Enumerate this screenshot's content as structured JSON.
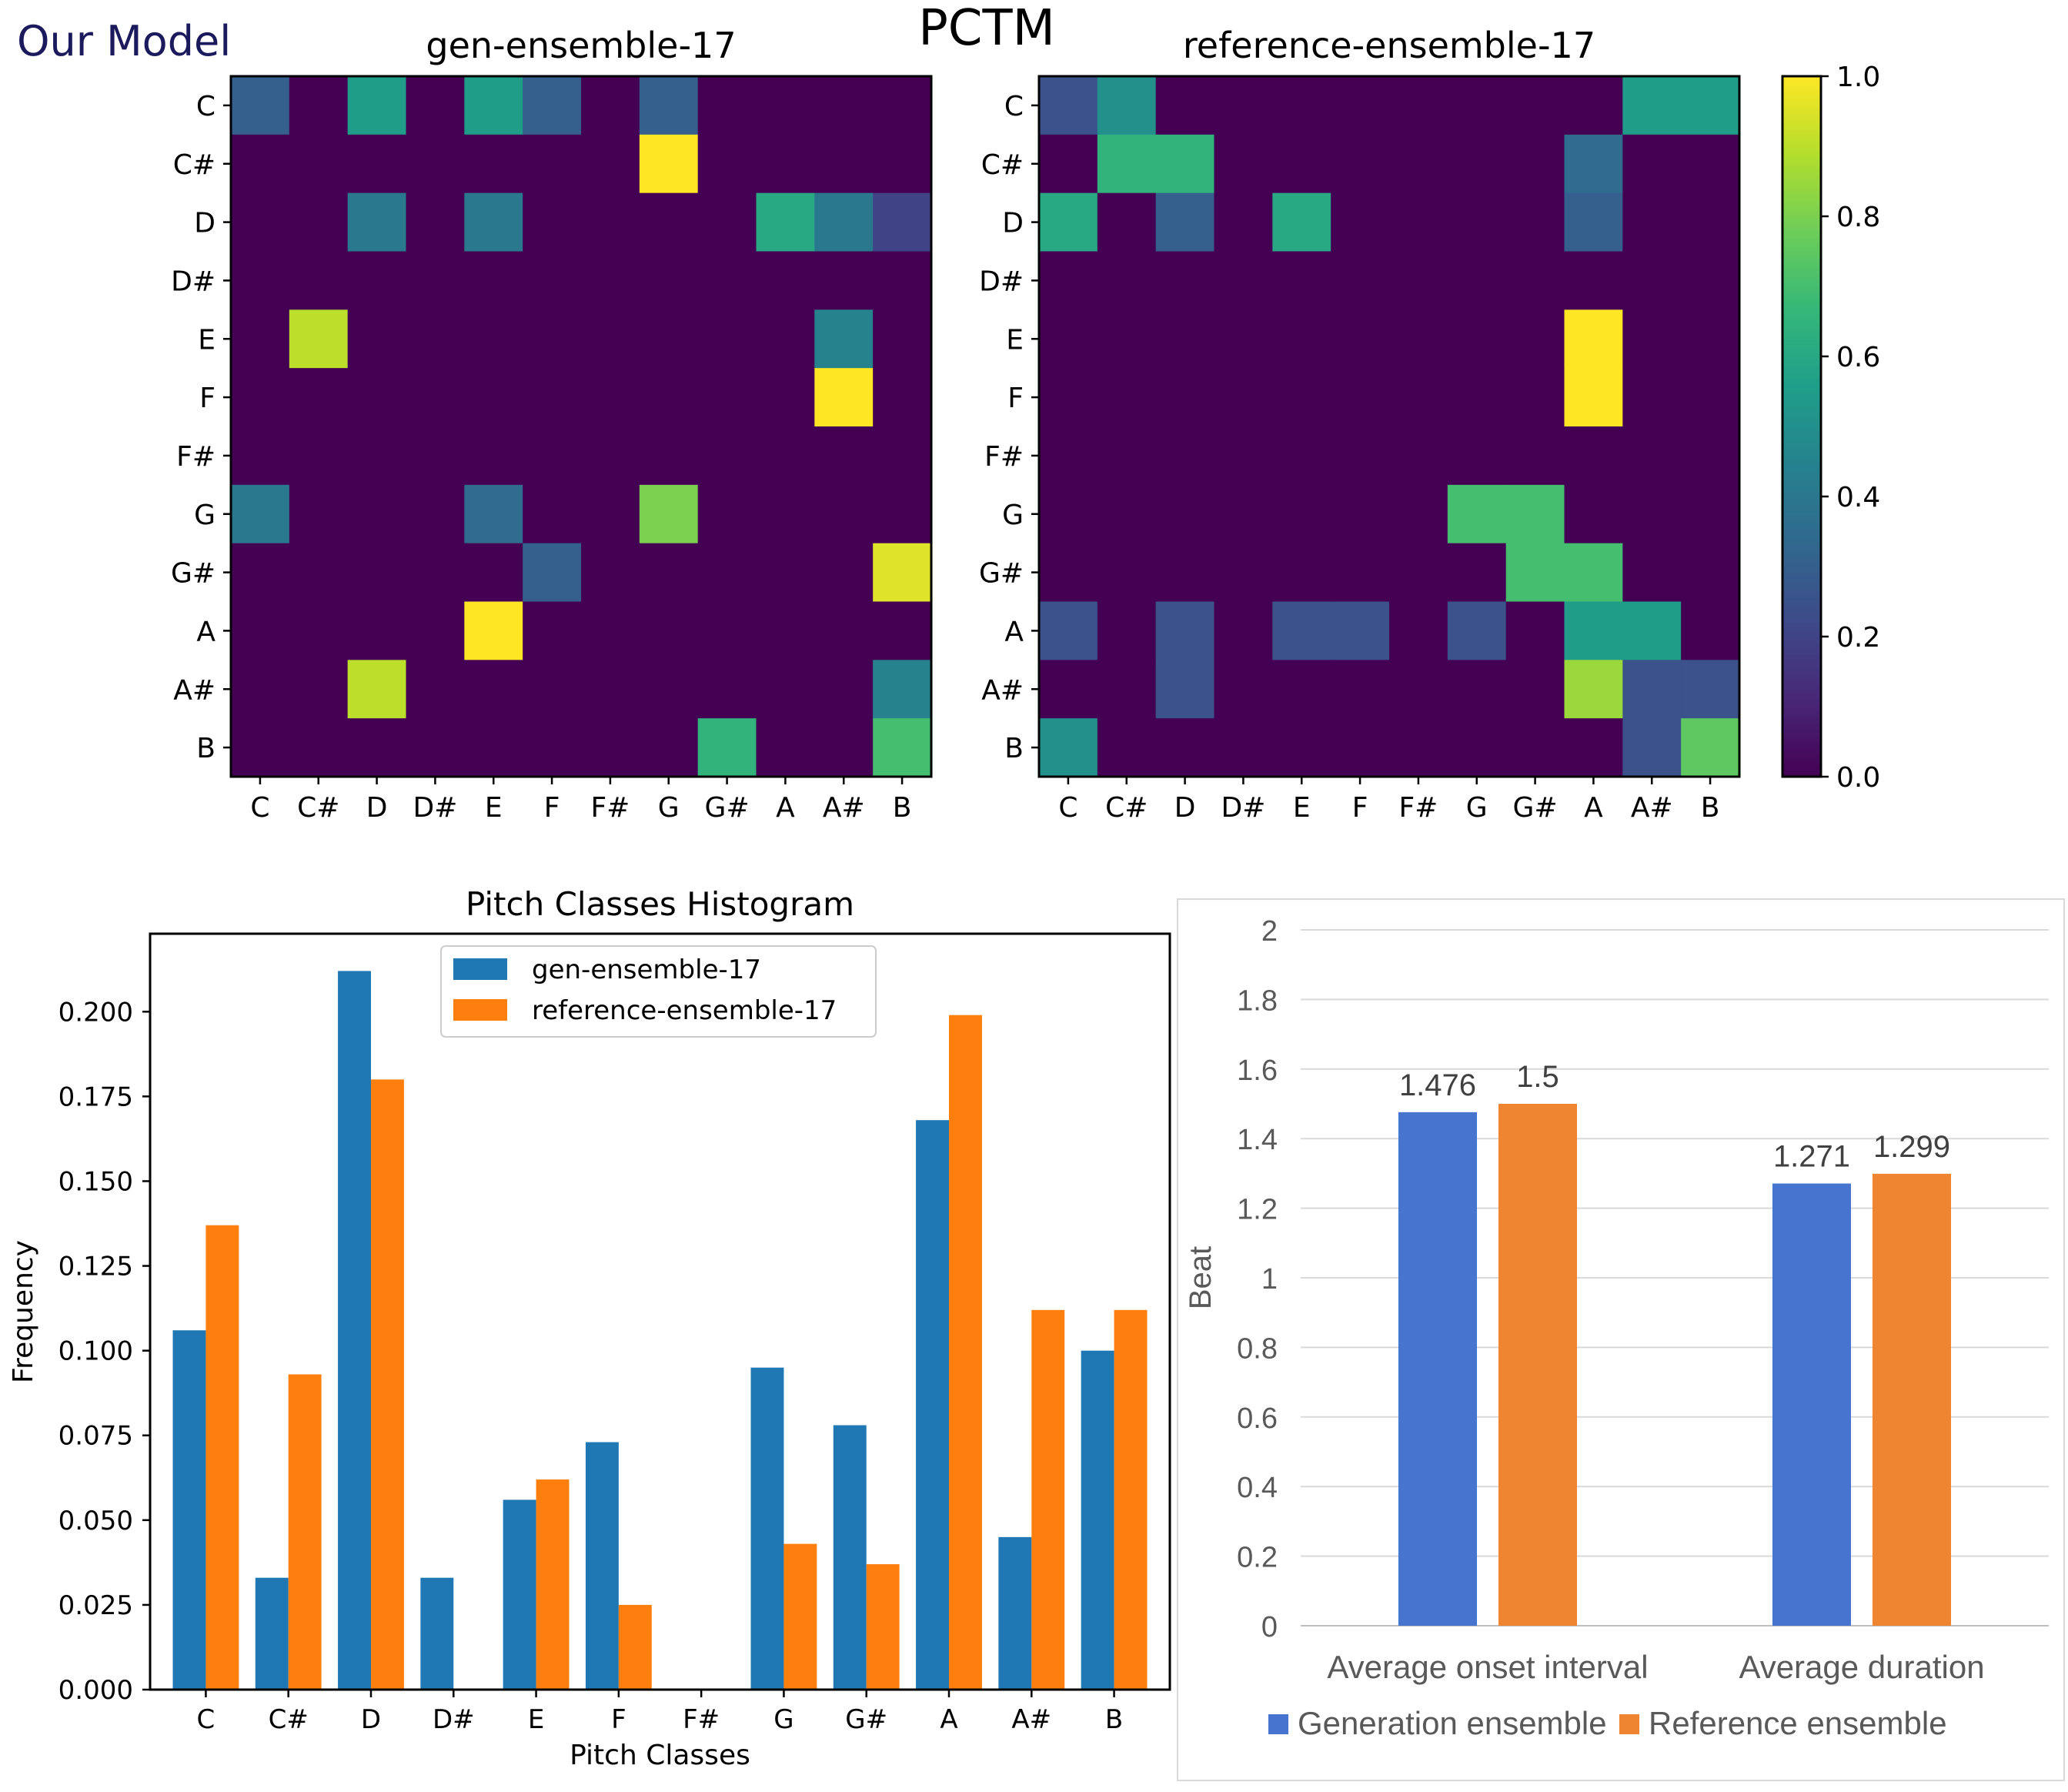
{
  "header": {
    "model_label": "Our Model",
    "figure_title": "PCTM"
  },
  "chart_data": [
    {
      "id": "heatmap-gen",
      "type": "heatmap",
      "title": "gen-ensemble-17",
      "row_labels": [
        "C",
        "C#",
        "D",
        "D#",
        "E",
        "F",
        "F#",
        "G",
        "G#",
        "A",
        "A#",
        "B"
      ],
      "col_labels": [
        "C",
        "C#",
        "D",
        "D#",
        "E",
        "F",
        "F#",
        "G",
        "G#",
        "A",
        "A#",
        "B"
      ],
      "vmin": 0,
      "vmax": 1,
      "values": [
        [
          0.3,
          0,
          0.55,
          0,
          0.55,
          0.3,
          0,
          0.3,
          0,
          0,
          0,
          0
        ],
        [
          0,
          0,
          0,
          0,
          0,
          0,
          0,
          1.0,
          0,
          0,
          0,
          0
        ],
        [
          0,
          0,
          0.4,
          0,
          0.4,
          0,
          0,
          0,
          0,
          0.6,
          0.4,
          0.2
        ],
        [
          0,
          0,
          0,
          0,
          0,
          0,
          0,
          0,
          0,
          0,
          0,
          0
        ],
        [
          0,
          0.9,
          0,
          0,
          0,
          0,
          0,
          0,
          0,
          0,
          0.45,
          0
        ],
        [
          0,
          0,
          0,
          0,
          0,
          0,
          0,
          0,
          0,
          0,
          1.0,
          0
        ],
        [
          0,
          0,
          0,
          0,
          0,
          0,
          0,
          0,
          0,
          0,
          0,
          0
        ],
        [
          0.4,
          0,
          0,
          0,
          0.35,
          0,
          0,
          0.8,
          0,
          0,
          0,
          0
        ],
        [
          0,
          0,
          0,
          0,
          0,
          0.3,
          0,
          0,
          0,
          0,
          0,
          0.95
        ],
        [
          0,
          0,
          0,
          0,
          1.0,
          0,
          0,
          0,
          0,
          0,
          0,
          0
        ],
        [
          0,
          0,
          0.9,
          0,
          0,
          0,
          0,
          0,
          0,
          0,
          0,
          0.45
        ],
        [
          0,
          0,
          0,
          0,
          0,
          0,
          0,
          0,
          0.65,
          0,
          0,
          0.7
        ]
      ]
    },
    {
      "id": "heatmap-ref",
      "type": "heatmap",
      "title": "reference-ensemble-17",
      "row_labels": [
        "C",
        "C#",
        "D",
        "D#",
        "E",
        "F",
        "F#",
        "G",
        "G#",
        "A",
        "A#",
        "B"
      ],
      "col_labels": [
        "C",
        "C#",
        "D",
        "D#",
        "E",
        "F",
        "F#",
        "G",
        "G#",
        "A",
        "A#",
        "B"
      ],
      "vmin": 0,
      "vmax": 1,
      "values": [
        [
          0.25,
          0.5,
          0,
          0,
          0,
          0,
          0,
          0,
          0,
          0,
          0.55,
          0.55
        ],
        [
          0,
          0.65,
          0.65,
          0,
          0,
          0,
          0,
          0,
          0,
          0.35,
          0,
          0
        ],
        [
          0.6,
          0,
          0.3,
          0,
          0.6,
          0,
          0,
          0,
          0,
          0.3,
          0,
          0
        ],
        [
          0,
          0,
          0,
          0,
          0,
          0,
          0,
          0,
          0,
          0,
          0,
          0
        ],
        [
          0,
          0,
          0,
          0,
          0,
          0,
          0,
          0,
          0,
          1.0,
          0,
          0
        ],
        [
          0,
          0,
          0,
          0,
          0,
          0,
          0,
          0,
          0,
          1.0,
          0,
          0
        ],
        [
          0,
          0,
          0,
          0,
          0,
          0,
          0,
          0,
          0,
          0,
          0,
          0
        ],
        [
          0,
          0,
          0,
          0,
          0,
          0,
          0,
          0.7,
          0.7,
          0,
          0,
          0
        ],
        [
          0,
          0,
          0,
          0,
          0,
          0,
          0,
          0,
          0.7,
          0.7,
          0,
          0
        ],
        [
          0.25,
          0,
          0.25,
          0,
          0.25,
          0.25,
          0,
          0.25,
          0,
          0.55,
          0.55,
          0
        ],
        [
          0,
          0,
          0.25,
          0,
          0,
          0,
          0,
          0,
          0,
          0.85,
          0.25,
          0.25
        ],
        [
          0.5,
          0,
          0,
          0,
          0,
          0,
          0,
          0,
          0,
          0,
          0.25,
          0.75
        ]
      ]
    },
    {
      "id": "colorbar",
      "type": "colorbar",
      "ticks": [
        "0.0",
        "0.2",
        "0.4",
        "0.6",
        "0.8",
        "1.0"
      ],
      "range": [
        0,
        1
      ]
    },
    {
      "id": "histogram",
      "type": "bar",
      "title": "Pitch Classes Histogram",
      "xlabel": "Pitch Classes",
      "ylabel": "Frequency",
      "categories": [
        "C",
        "C#",
        "D",
        "D#",
        "E",
        "F",
        "F#",
        "G",
        "G#",
        "A",
        "A#",
        "B"
      ],
      "ylim": [
        0,
        0.223
      ],
      "yticks": [
        0,
        0.025,
        0.05,
        0.075,
        0.1,
        0.125,
        0.15,
        0.175,
        0.2
      ],
      "ytick_labels": [
        "0.000",
        "0.025",
        "0.050",
        "0.075",
        "0.100",
        "0.125",
        "0.150",
        "0.175",
        "0.200"
      ],
      "legend_position": "top-center",
      "series": [
        {
          "name": "gen-ensemble-17",
          "color": "#1f77b4",
          "values": [
            0.106,
            0.033,
            0.212,
            0.033,
            0.056,
            0.073,
            0,
            0.095,
            0.078,
            0.168,
            0.045,
            0.1
          ]
        },
        {
          "name": "reference-ensemble-17",
          "color": "#ff7f0e",
          "values": [
            0.137,
            0.093,
            0.18,
            0,
            0.062,
            0.025,
            0,
            0.043,
            0.037,
            0.199,
            0.112,
            0.112
          ]
        }
      ]
    },
    {
      "id": "beat-chart",
      "type": "bar",
      "title": "",
      "ylabel": "Beat",
      "categories": [
        "Average onset interval",
        "Average duration"
      ],
      "ylim": [
        0,
        2
      ],
      "yticks": [
        0,
        0.2,
        0.4,
        0.6,
        0.8,
        1,
        1.2,
        1.4,
        1.6,
        1.8,
        2
      ],
      "ytick_labels": [
        "0",
        "0.2",
        "0.4",
        "0.6",
        "0.8",
        "1",
        "1.2",
        "1.4",
        "1.6",
        "1.8",
        "2"
      ],
      "legend_position": "bottom",
      "grid": true,
      "series": [
        {
          "name": "Generation ensemble",
          "color": "#4674cf",
          "values": [
            1.476,
            1.271
          ],
          "labels": [
            "1.476",
            "1.271"
          ]
        },
        {
          "name": "Reference ensemble",
          "color": "#ef8531",
          "values": [
            1.5,
            1.299
          ],
          "labels": [
            "1.5",
            "1.299"
          ]
        }
      ]
    }
  ]
}
